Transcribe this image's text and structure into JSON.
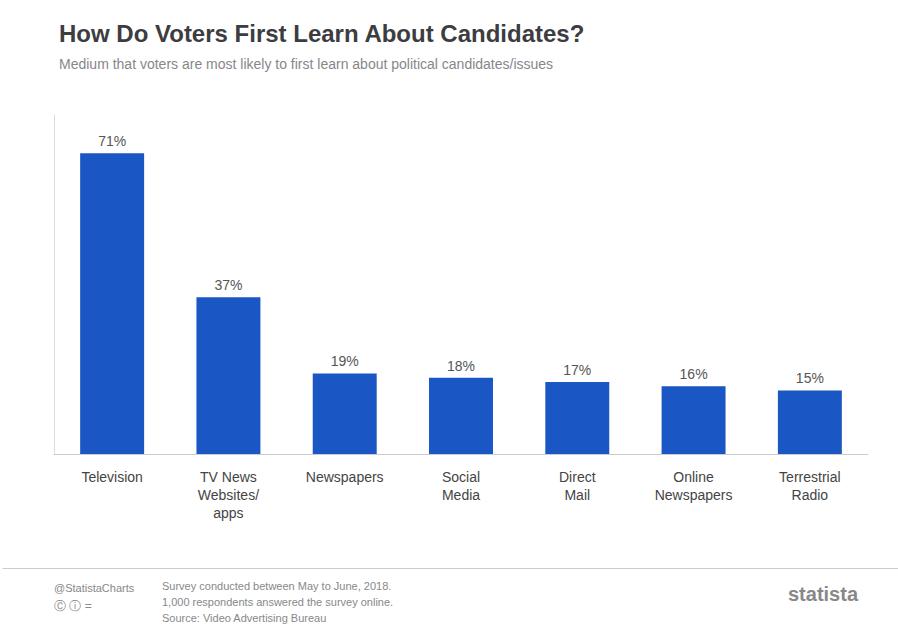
{
  "chart_data": {
    "type": "bar",
    "title": "How Do Voters First Learn About Candidates?",
    "subtitle": "Medium that voters are most likely to first learn about political candidates/issues",
    "categories": [
      "Television",
      "TV News\nWebsites/\napps",
      "Newspapers",
      "Social\nMedia",
      "Direct\nMail",
      "Online\nNewspapers",
      "Terrestrial\nRadio"
    ],
    "values": [
      71,
      37,
      19,
      18,
      17,
      16,
      15
    ],
    "value_labels": [
      "71%",
      "37%",
      "19%",
      "18%",
      "17%",
      "16%",
      "15%"
    ],
    "data_labels": true,
    "color": "#1a56c4",
    "ylim": [
      0,
      80
    ],
    "grid": false,
    "tick_labels": "x",
    "annotations": [
      "@StatistaCharts",
      "Ⓒ ⓘ =",
      "Survey conducted between May to June, 2018.\n1,000 respondents answered the survey online.\nSource: Video Advertising Bureau",
      "statista"
    ]
  }
}
